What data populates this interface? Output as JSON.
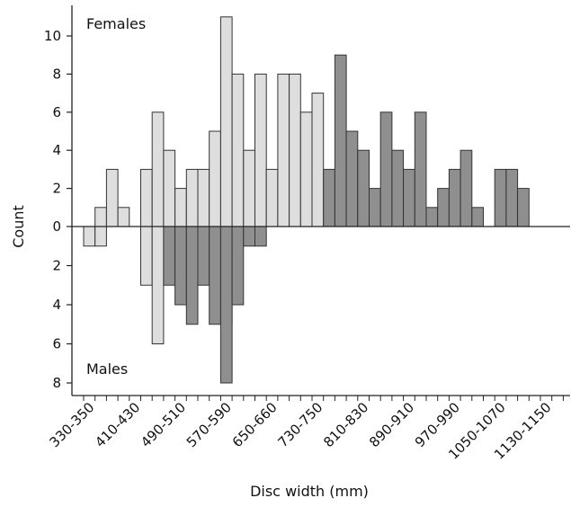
{
  "chart_data": {
    "type": "bar",
    "xlabel": "Disc width (mm)",
    "ylabel": "Count",
    "annotations": {
      "top": "Females",
      "bottom": "Males"
    },
    "ylim_up": [
      0,
      11.3
    ],
    "ylim_down": [
      0,
      8.5
    ],
    "y_ticks_up": [
      0,
      2,
      4,
      6,
      8,
      10
    ],
    "y_ticks_down": [
      2,
      4,
      6,
      8
    ],
    "x_tick_labels": [
      "330-350",
      "410-430",
      "490-510",
      "570-590",
      "650-660",
      "730-750",
      "810-830",
      "890-910",
      "970-990",
      "1050-1070",
      "1130-1150"
    ],
    "bins": [
      "330-350",
      "350-370",
      "370-390",
      "390-410",
      "410-430",
      "430-450",
      "450-470",
      "470-490",
      "490-510",
      "510-530",
      "530-550",
      "550-570",
      "570-590",
      "590-610",
      "610-630",
      "630-650",
      "650-660",
      "660-680",
      "680-710",
      "710-730",
      "730-750",
      "750-770",
      "770-790",
      "790-810",
      "810-830",
      "830-850",
      "850-870",
      "870-890",
      "890-910",
      "910-930",
      "930-950",
      "950-970",
      "970-990",
      "990-1010",
      "1010-1030",
      "1030-1050",
      "1050-1070",
      "1070-1090",
      "1090-1110",
      "1110-1130",
      "1130-1150"
    ],
    "colors": {
      "light": "#dedede",
      "dark": "#8f8f8f",
      "stroke": "#333333"
    },
    "series": [
      {
        "name": "Females",
        "direction": "up",
        "light": [
          0,
          1,
          3,
          1,
          0,
          3,
          6,
          4,
          2,
          3,
          3,
          5,
          11,
          8,
          4,
          8,
          3,
          8,
          8,
          6,
          7,
          0,
          0,
          0,
          0,
          0,
          0,
          0,
          0,
          0,
          0,
          0,
          0,
          0,
          0,
          0,
          0,
          0,
          0,
          0,
          0
        ],
        "dark": [
          0,
          0,
          0,
          0,
          0,
          0,
          0,
          0,
          0,
          0,
          0,
          0,
          0,
          0,
          0,
          0,
          0,
          0,
          0,
          0,
          0,
          3,
          9,
          5,
          4,
          2,
          6,
          4,
          3,
          6,
          1,
          2,
          3,
          4,
          1,
          0,
          3,
          3,
          2,
          0,
          0
        ]
      },
      {
        "name": "Males",
        "direction": "down",
        "light": [
          1,
          1,
          0,
          0,
          0,
          3,
          6,
          0,
          0,
          0,
          0,
          3,
          5,
          0,
          0,
          0,
          0,
          0,
          0,
          0,
          0,
          0,
          0,
          0,
          0,
          0,
          0,
          0,
          0,
          0,
          0,
          0,
          0,
          0,
          0,
          0,
          0,
          0,
          0,
          0,
          0
        ],
        "dark": [
          0,
          0,
          0,
          0,
          0,
          0,
          0,
          3,
          4,
          5,
          3,
          5,
          8,
          4,
          1,
          1,
          0,
          0,
          0,
          0,
          0,
          0,
          0,
          0,
          0,
          0,
          0,
          0,
          0,
          0,
          0,
          0,
          0,
          0,
          0,
          0,
          0,
          0,
          0,
          0,
          0
        ]
      }
    ]
  }
}
